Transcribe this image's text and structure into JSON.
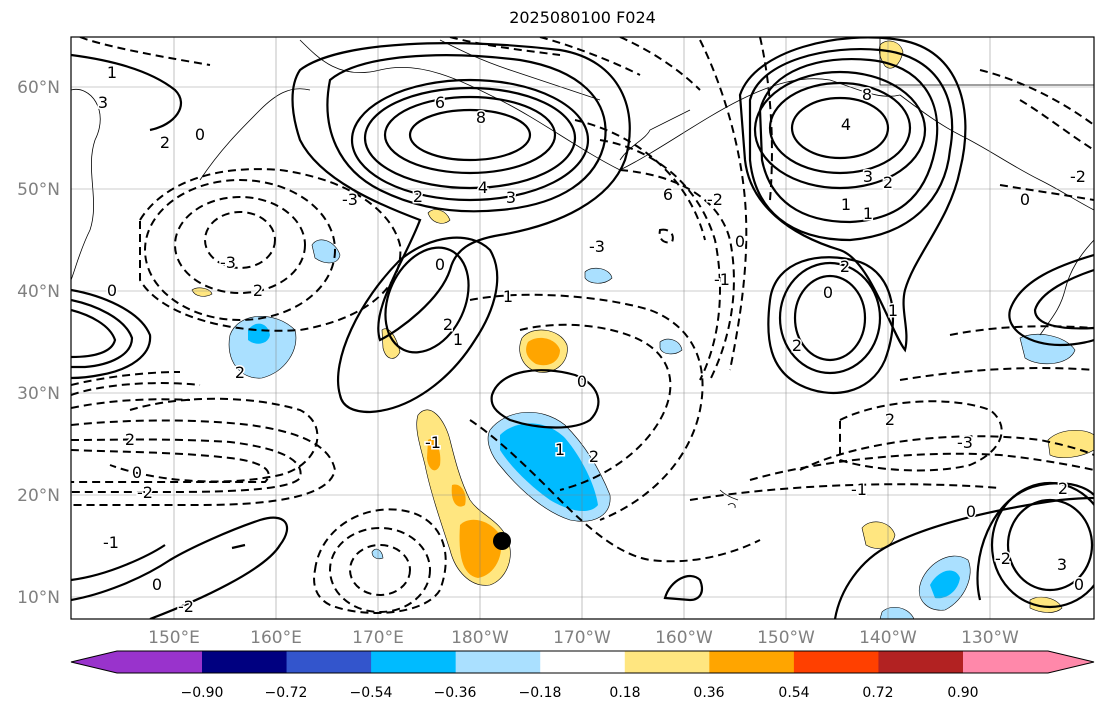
{
  "title": "2025080100 F024",
  "map": {
    "lat_labels": [
      "60°N",
      "50°N",
      "40°N",
      "30°N",
      "20°N",
      "10°N"
    ],
    "lon_labels": [
      "150°E",
      "160°E",
      "170°E",
      "180°W",
      "170°W",
      "160°W",
      "150°W",
      "140°W",
      "130°W"
    ],
    "contour_labels": [
      "1",
      "3",
      "2",
      "0",
      "6",
      "8",
      "4",
      "3",
      "2",
      "-3",
      "2",
      "0",
      "-3",
      "2",
      "0",
      "-2",
      "2",
      "-1",
      "0",
      "1",
      "2",
      "-3",
      "-2",
      "-1",
      "0",
      "1",
      "1",
      "2",
      "0",
      "-1",
      "0",
      "-2",
      "6",
      "8",
      "4",
      "3",
      "2",
      "1",
      "1",
      "2",
      "0",
      "1",
      "2",
      "-2",
      "-3",
      "2",
      "-1",
      "0",
      "2",
      "3",
      "0",
      "-2",
      "0"
    ],
    "marker": "tropical-cyclone-position"
  },
  "colorbar": {
    "colors": [
      "#9933cc",
      "#000080",
      "#3355cc",
      "#00bbff",
      "#aae0ff",
      "#ffffff",
      "#ffe680",
      "#ffa500",
      "#ff4000",
      "#b22222",
      "#ff88aa"
    ],
    "tick_labels": [
      "−0.90",
      "−0.72",
      "−0.54",
      "−0.36",
      "−0.18",
      "0.18",
      "0.36",
      "0.54",
      "0.72",
      "0.90"
    ]
  }
}
